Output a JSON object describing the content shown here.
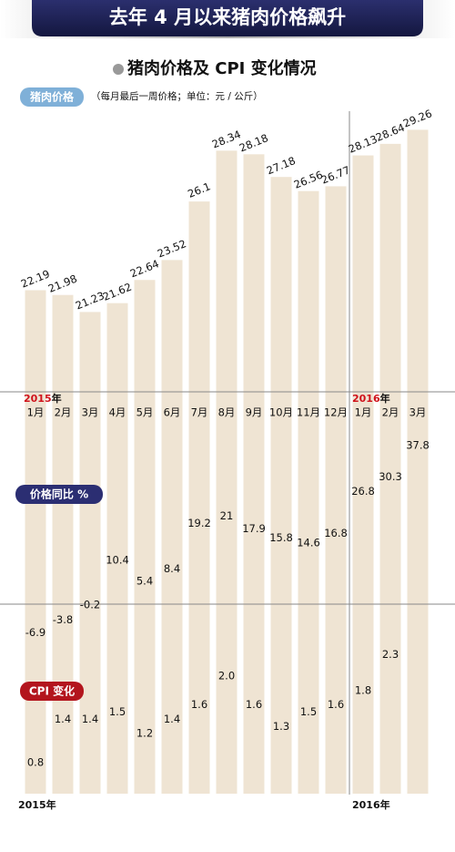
{
  "header": {
    "title": "去年 4 月以来猪肉价格飙升"
  },
  "chart_data": {
    "type": "bar",
    "title": "猪肉价格及 CPI 变化情况",
    "series_label": "猪肉价格",
    "note": "（每月最后一周价格；单位：元 / 公斤）",
    "categories": [
      "1月",
      "2月",
      "3月",
      "4月",
      "5月",
      "6月",
      "7月",
      "8月",
      "9月",
      "10月",
      "11月",
      "12月",
      "1月",
      "2月",
      "3月"
    ],
    "values": [
      22.19,
      21.98,
      21.23,
      21.62,
      22.64,
      23.52,
      26.1,
      28.34,
      28.18,
      27.18,
      26.56,
      26.77,
      28.13,
      28.64,
      29.26
    ],
    "color": "#efe4d3",
    "ylim": [
      0,
      30
    ],
    "year_marks": [
      {
        "year": "2015",
        "unit": "年"
      },
      {
        "year": "2016",
        "unit": "年"
      }
    ],
    "bottom_years": [
      "2015年",
      "2016年"
    ],
    "yoy": {
      "label": "价格同比 %",
      "values": [
        -6.9,
        -3.8,
        -0.2,
        10.4,
        5.4,
        8.4,
        19.2,
        21,
        17.9,
        15.8,
        14.6,
        16.8,
        26.8,
        30.3,
        37.8
      ],
      "ylim": [
        -10,
        40
      ]
    },
    "cpi": {
      "label": "CPI 变化",
      "values": [
        0.8,
        1.4,
        1.4,
        1.5,
        1.2,
        1.4,
        1.6,
        2.0,
        1.6,
        1.3,
        1.5,
        1.6,
        1.8,
        2.3,
        null
      ],
      "value_labels": [
        "0.8",
        "1.4",
        "1.4",
        "1.5",
        "1.2",
        "1.4",
        "1.6",
        "2.0",
        "1.6",
        "1.3",
        "1.5",
        "1.6",
        "1.8",
        "2.3",
        null
      ],
      "ylim": [
        0,
        3
      ]
    }
  }
}
